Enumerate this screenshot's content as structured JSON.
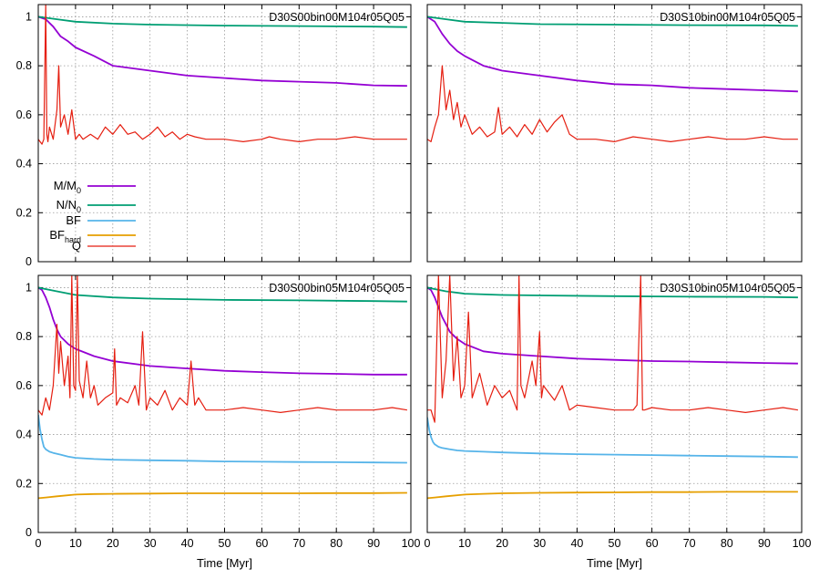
{
  "chart_data": [
    {
      "type": "line",
      "title": "D30S00bin00M104r05Q05",
      "xlabel": "",
      "xlim": [
        0,
        100
      ],
      "ylim": [
        0,
        1.05
      ],
      "grid": true,
      "xticks": [],
      "yticks": [
        "0",
        "0.2",
        "0.4",
        "0.6",
        "0.8",
        "1"
      ],
      "legend": {
        "placement": "left-middle",
        "entries": [
          {
            "name": "M/M",
            "sub": "0",
            "color": "#9400d3"
          },
          {
            "name": "N/N",
            "sub": "0",
            "color": "#009e73"
          },
          {
            "name": "BF",
            "sub": "",
            "color": "#56b4e9"
          },
          {
            "name": "BF",
            "sub": "hard",
            "color": "#e69f00"
          },
          {
            "name": "Q",
            "sub": "",
            "color": "#e51e10"
          }
        ]
      },
      "series": [
        {
          "key": "M/M0",
          "color": "#9400d3",
          "x": [
            0,
            2,
            4,
            6,
            8,
            10,
            15,
            20,
            30,
            40,
            50,
            60,
            70,
            80,
            90,
            99
          ],
          "y": [
            1.0,
            0.99,
            0.96,
            0.92,
            0.9,
            0.875,
            0.84,
            0.8,
            0.78,
            0.76,
            0.75,
            0.74,
            0.735,
            0.73,
            0.72,
            0.718
          ]
        },
        {
          "key": "N/N0",
          "color": "#009e73",
          "x": [
            0,
            5,
            10,
            20,
            30,
            50,
            70,
            90,
            99
          ],
          "y": [
            1.0,
            0.99,
            0.98,
            0.972,
            0.968,
            0.964,
            0.962,
            0.96,
            0.958
          ]
        },
        {
          "key": "Q",
          "color": "#e51e10",
          "x": [
            0,
            1,
            1.5,
            2,
            2.3,
            2.6,
            3,
            4,
            5,
            5.5,
            6,
            7,
            8,
            9,
            10,
            11,
            12,
            14,
            16,
            18,
            20,
            22,
            24,
            26,
            28,
            30,
            32,
            34,
            36,
            38,
            40,
            42,
            45,
            50,
            55,
            60,
            62,
            65,
            70,
            75,
            80,
            85,
            90,
            95,
            99
          ],
          "y": [
            0.5,
            0.48,
            0.5,
            1.05,
            0.52,
            0.49,
            0.55,
            0.5,
            0.62,
            0.8,
            0.55,
            0.6,
            0.52,
            0.62,
            0.5,
            0.52,
            0.5,
            0.52,
            0.5,
            0.55,
            0.52,
            0.56,
            0.52,
            0.53,
            0.5,
            0.52,
            0.55,
            0.51,
            0.53,
            0.5,
            0.52,
            0.51,
            0.5,
            0.5,
            0.49,
            0.5,
            0.51,
            0.5,
            0.49,
            0.5,
            0.5,
            0.51,
            0.5,
            0.5,
            0.5
          ]
        }
      ]
    },
    {
      "type": "line",
      "title": "D30S10bin00M104r05Q05",
      "xlabel": "",
      "xlim": [
        0,
        100
      ],
      "ylim": [
        0,
        1.05
      ],
      "grid": true,
      "xticks": [],
      "yticks": [],
      "series": [
        {
          "key": "M/M0",
          "color": "#9400d3",
          "x": [
            0,
            2,
            4,
            6,
            8,
            10,
            15,
            20,
            30,
            40,
            50,
            60,
            70,
            80,
            90,
            99
          ],
          "y": [
            1.0,
            0.98,
            0.93,
            0.89,
            0.86,
            0.84,
            0.8,
            0.78,
            0.76,
            0.74,
            0.725,
            0.72,
            0.71,
            0.705,
            0.7,
            0.695
          ]
        },
        {
          "key": "N/N0",
          "color": "#009e73",
          "x": [
            0,
            5,
            10,
            20,
            30,
            50,
            70,
            90,
            99
          ],
          "y": [
            1.0,
            0.99,
            0.98,
            0.975,
            0.97,
            0.968,
            0.966,
            0.965,
            0.963
          ]
        },
        {
          "key": "Q",
          "color": "#e51e10",
          "x": [
            0,
            1,
            2,
            3,
            4,
            5,
            6,
            7,
            8,
            9,
            10,
            12,
            14,
            16,
            18,
            19,
            20,
            22,
            24,
            26,
            28,
            30,
            32,
            34,
            36,
            38,
            40,
            45,
            50,
            55,
            60,
            65,
            70,
            75,
            80,
            85,
            90,
            95,
            99
          ],
          "y": [
            0.5,
            0.49,
            0.55,
            0.6,
            0.8,
            0.62,
            0.7,
            0.58,
            0.65,
            0.55,
            0.6,
            0.52,
            0.55,
            0.51,
            0.53,
            0.63,
            0.52,
            0.55,
            0.51,
            0.56,
            0.52,
            0.58,
            0.53,
            0.57,
            0.6,
            0.52,
            0.5,
            0.5,
            0.49,
            0.51,
            0.5,
            0.49,
            0.5,
            0.51,
            0.5,
            0.5,
            0.51,
            0.5,
            0.5
          ]
        }
      ]
    },
    {
      "type": "line",
      "title": "D30S00bin05M104r05Q05",
      "xlabel": "Time [Myr]",
      "xlim": [
        0,
        100
      ],
      "ylim": [
        0,
        1.05
      ],
      "grid": true,
      "xticks": [
        "0",
        "10",
        "20",
        "30",
        "40",
        "50",
        "60",
        "70",
        "80",
        "90",
        "100"
      ],
      "yticks": [
        "0",
        "0.2",
        "0.4",
        "0.6",
        "0.8",
        "1"
      ],
      "series": [
        {
          "key": "M/M0",
          "color": "#9400d3",
          "x": [
            0,
            1,
            2,
            3,
            4,
            5,
            6,
            8,
            10,
            15,
            20,
            30,
            40,
            50,
            60,
            70,
            80,
            90,
            99
          ],
          "y": [
            1.0,
            0.99,
            0.96,
            0.92,
            0.87,
            0.83,
            0.8,
            0.77,
            0.75,
            0.72,
            0.7,
            0.68,
            0.67,
            0.66,
            0.655,
            0.65,
            0.648,
            0.645,
            0.645
          ]
        },
        {
          "key": "N/N0",
          "color": "#009e73",
          "x": [
            0,
            5,
            10,
            20,
            30,
            50,
            70,
            90,
            99
          ],
          "y": [
            1.0,
            0.985,
            0.97,
            0.96,
            0.955,
            0.95,
            0.948,
            0.945,
            0.943
          ]
        },
        {
          "key": "BF",
          "color": "#56b4e9",
          "x": [
            0,
            0.5,
            1,
            1.5,
            2,
            3,
            4,
            6,
            8,
            10,
            15,
            20,
            30,
            40,
            50,
            60,
            70,
            80,
            90,
            99
          ],
          "y": [
            0.48,
            0.42,
            0.38,
            0.35,
            0.34,
            0.33,
            0.325,
            0.318,
            0.31,
            0.305,
            0.3,
            0.297,
            0.295,
            0.293,
            0.29,
            0.289,
            0.288,
            0.287,
            0.286,
            0.285
          ]
        },
        {
          "key": "BF_hard",
          "color": "#e69f00",
          "x": [
            0,
            2,
            5,
            10,
            15,
            20,
            30,
            40,
            50,
            60,
            70,
            80,
            90,
            99
          ],
          "y": [
            0.14,
            0.143,
            0.148,
            0.155,
            0.157,
            0.158,
            0.159,
            0.16,
            0.16,
            0.16,
            0.16,
            0.161,
            0.161,
            0.162
          ]
        },
        {
          "key": "Q",
          "color": "#e51e10",
          "x": [
            0,
            1,
            2,
            3,
            4,
            5,
            5.5,
            6,
            7,
            8,
            8.5,
            9,
            9.5,
            10,
            10.5,
            11,
            12,
            13,
            14,
            15,
            16,
            18,
            20,
            20.5,
            21,
            22,
            24,
            26,
            27,
            28,
            29,
            30,
            32,
            34,
            36,
            38,
            40,
            41,
            42,
            43,
            45,
            50,
            55,
            60,
            65,
            70,
            75,
            80,
            85,
            90,
            95,
            99
          ],
          "y": [
            0.5,
            0.48,
            0.55,
            0.5,
            0.6,
            0.85,
            0.65,
            0.78,
            0.6,
            0.72,
            0.55,
            1.05,
            0.6,
            0.58,
            1.05,
            0.62,
            0.55,
            0.7,
            0.55,
            0.6,
            0.52,
            0.55,
            0.57,
            0.75,
            0.52,
            0.55,
            0.53,
            0.6,
            0.52,
            0.82,
            0.5,
            0.55,
            0.52,
            0.58,
            0.5,
            0.55,
            0.52,
            0.7,
            0.52,
            0.55,
            0.5,
            0.5,
            0.51,
            0.5,
            0.49,
            0.5,
            0.51,
            0.5,
            0.5,
            0.5,
            0.51,
            0.5
          ]
        }
      ]
    },
    {
      "type": "line",
      "title": "D30S10bin05M104r05Q05",
      "xlabel": "Time [Myr]",
      "xlim": [
        0,
        100
      ],
      "ylim": [
        0,
        1.05
      ],
      "grid": true,
      "xticks": [
        "0",
        "10",
        "20",
        "30",
        "40",
        "50",
        "60",
        "70",
        "80",
        "90",
        "100"
      ],
      "yticks": [],
      "series": [
        {
          "key": "M/M0",
          "color": "#9400d3",
          "x": [
            0,
            1,
            2,
            3,
            4,
            5,
            6,
            8,
            10,
            15,
            20,
            30,
            40,
            50,
            60,
            70,
            80,
            90,
            99
          ],
          "y": [
            1.0,
            0.99,
            0.96,
            0.92,
            0.88,
            0.85,
            0.82,
            0.79,
            0.77,
            0.74,
            0.73,
            0.72,
            0.71,
            0.705,
            0.7,
            0.698,
            0.695,
            0.692,
            0.69
          ]
        },
        {
          "key": "N/N0",
          "color": "#009e73",
          "x": [
            0,
            5,
            10,
            20,
            30,
            50,
            70,
            90,
            99
          ],
          "y": [
            1.0,
            0.985,
            0.975,
            0.97,
            0.968,
            0.965,
            0.963,
            0.962,
            0.96
          ]
        },
        {
          "key": "BF",
          "color": "#56b4e9",
          "x": [
            0,
            0.5,
            1,
            1.5,
            2,
            3,
            4,
            6,
            8,
            10,
            15,
            20,
            30,
            40,
            50,
            60,
            70,
            80,
            90,
            99
          ],
          "y": [
            0.47,
            0.42,
            0.39,
            0.37,
            0.36,
            0.35,
            0.345,
            0.34,
            0.335,
            0.333,
            0.33,
            0.327,
            0.323,
            0.32,
            0.318,
            0.316,
            0.314,
            0.312,
            0.31,
            0.308
          ]
        },
        {
          "key": "BF_hard",
          "color": "#e69f00",
          "x": [
            0,
            2,
            5,
            10,
            15,
            20,
            30,
            40,
            50,
            60,
            70,
            80,
            90,
            99
          ],
          "y": [
            0.14,
            0.143,
            0.148,
            0.155,
            0.158,
            0.16,
            0.162,
            0.163,
            0.164,
            0.165,
            0.165,
            0.166,
            0.166,
            0.166
          ]
        },
        {
          "key": "Q",
          "color": "#e51e10",
          "x": [
            0,
            1,
            2,
            3,
            4,
            5,
            6,
            7,
            8,
            9,
            10,
            11,
            12,
            14,
            16,
            18,
            20,
            22,
            24,
            24.5,
            25,
            26,
            28,
            29,
            30,
            30.5,
            31,
            32,
            34,
            36,
            38,
            40,
            45,
            50,
            55,
            56,
            57,
            57.5,
            58,
            60,
            65,
            70,
            75,
            80,
            85,
            90,
            95,
            99
          ],
          "y": [
            0.5,
            0.5,
            0.45,
            1.05,
            0.55,
            0.7,
            1.05,
            0.62,
            0.8,
            0.55,
            0.6,
            0.9,
            0.55,
            0.65,
            0.52,
            0.6,
            0.55,
            0.58,
            0.5,
            1.05,
            0.6,
            0.55,
            0.7,
            0.6,
            0.82,
            0.55,
            0.6,
            0.58,
            0.54,
            0.6,
            0.5,
            0.52,
            0.51,
            0.5,
            0.5,
            0.52,
            1.05,
            0.5,
            0.5,
            0.51,
            0.5,
            0.5,
            0.51,
            0.5,
            0.49,
            0.5,
            0.51,
            0.5
          ]
        }
      ]
    }
  ]
}
